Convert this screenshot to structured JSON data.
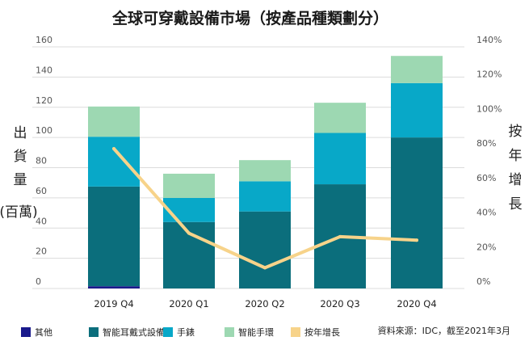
{
  "chart_data": {
    "type": "bar",
    "title": "全球可穿戴設備市場（按產品種類劃分）",
    "categories": [
      "2019 Q4",
      "2020 Q1",
      "2020 Q2",
      "2020 Q3",
      "2020 Q4"
    ],
    "series": [
      {
        "name": "其他",
        "kind": "stacked-bar",
        "axis": "left",
        "color": "#1a1a8c",
        "values": [
          1.5,
          0,
          0,
          0,
          0
        ]
      },
      {
        "name": "智能耳戴式設備",
        "kind": "stacked-bar",
        "axis": "left",
        "color": "#0b6e7c",
        "values": [
          66,
          44,
          51,
          69,
          100
        ]
      },
      {
        "name": "手錶",
        "kind": "stacked-bar",
        "axis": "left",
        "color": "#08a8c8",
        "values": [
          33,
          16,
          20,
          34,
          36
        ]
      },
      {
        "name": "智能手環",
        "kind": "stacked-bar",
        "axis": "left",
        "color": "#9dd8b2",
        "values": [
          20,
          16,
          14,
          20,
          18
        ]
      },
      {
        "name": "按年增長",
        "kind": "line",
        "axis": "right",
        "color": "#f7d38a",
        "values": [
          81,
          32,
          12,
          30,
          28
        ]
      }
    ],
    "ylim_left": [
      0,
      160
    ],
    "yticks_left": [
      "0",
      "20",
      "40",
      "60",
      "80",
      "100",
      "120",
      "140",
      "160"
    ],
    "ylim_right": [
      0,
      140
    ],
    "yticks_right": [
      "0%",
      "20%",
      "40%",
      "60%",
      "80%",
      "100%",
      "120%",
      "140%"
    ],
    "ylabel_left": [
      "出",
      "貨",
      "量",
      "(百萬)"
    ],
    "ylabel_right": [
      "按",
      "年",
      "增",
      "長"
    ],
    "grid": true,
    "legend_position": "bottom",
    "source": "資料來源：IDC，截至2021年3月"
  }
}
